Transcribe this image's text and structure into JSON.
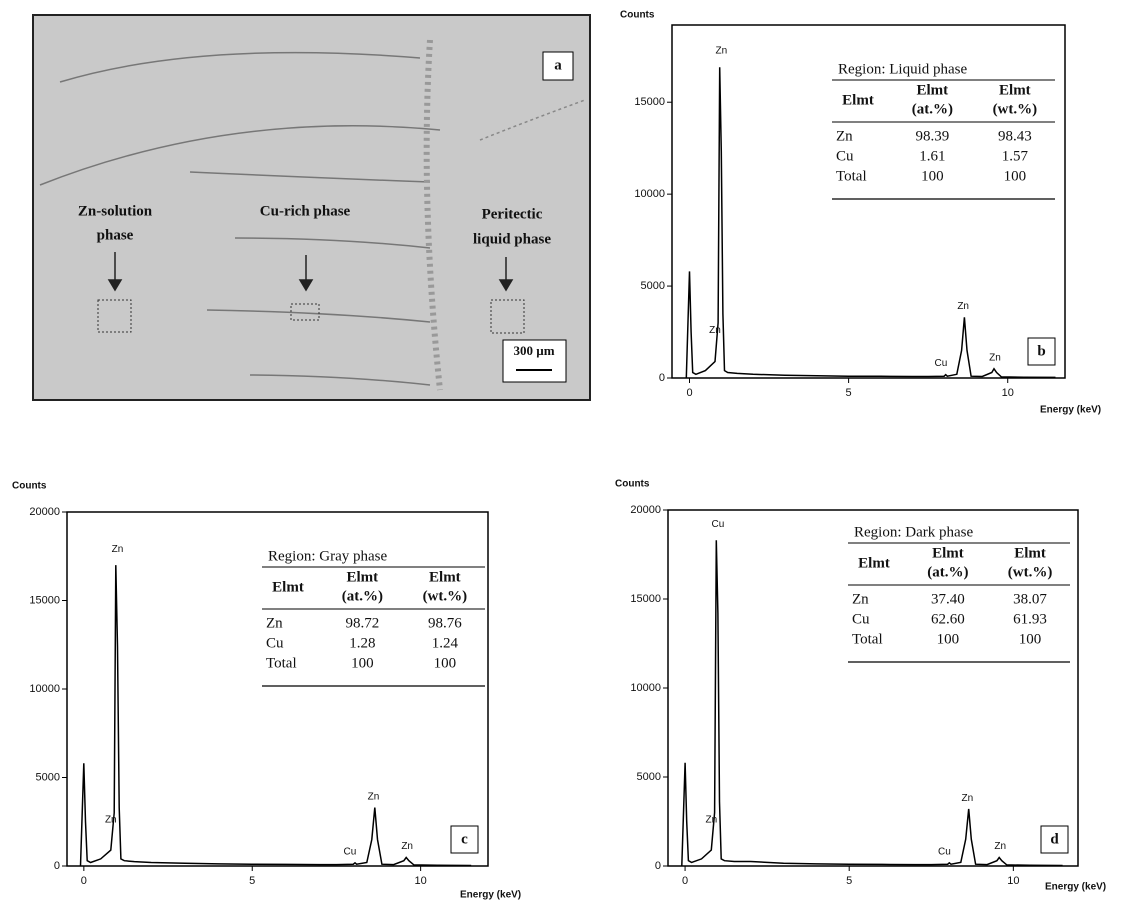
{
  "micrograph": {
    "panel_label": "a",
    "labels": [
      [
        "Zn-solution",
        "phase"
      ],
      [
        "Cu-rich phase"
      ],
      [
        "Peritectic",
        "liquid phase"
      ]
    ],
    "scale_bar": "300 µm"
  },
  "chart_data": [
    {
      "type": "line",
      "panel_label": "b",
      "y_label": "Counts",
      "x_label": "Energy (keV)",
      "color": "#000000",
      "xlim": [
        -0.55,
        11.8
      ],
      "ylim": [
        0,
        19200
      ],
      "xticks": [
        0,
        5,
        10
      ],
      "yticks": [
        0,
        5000,
        10000,
        15000
      ],
      "x": [
        -0.1,
        0,
        0.05,
        0.1,
        0.2,
        0.5,
        0.8,
        0.9,
        0.95,
        1.0,
        1.05,
        1.1,
        1.2,
        1.5,
        2,
        3,
        4,
        5,
        6,
        7,
        7.5,
        8.0,
        8.05,
        8.1,
        8.4,
        8.55,
        8.64,
        8.72,
        8.85,
        9.2,
        9.5,
        9.57,
        9.65,
        9.8,
        10.5,
        11.5
      ],
      "values": [
        0,
        5800,
        2500,
        300,
        200,
        400,
        900,
        3000,
        16900,
        12300,
        3500,
        400,
        300,
        250,
        200,
        150,
        120,
        100,
        90,
        80,
        80,
        100,
        180,
        100,
        200,
        1500,
        3300,
        1500,
        100,
        80,
        300,
        500,
        300,
        60,
        40,
        30
      ],
      "peak_labels": [
        {
          "label": "Zn",
          "x": 1.0,
          "y": 17800
        },
        {
          "label": "Zn",
          "x": 0.8,
          "y": 2600
        },
        {
          "label": "Cu",
          "x": 7.9,
          "y": 800
        },
        {
          "label": "Zn",
          "x": 8.6,
          "y": 3900
        },
        {
          "label": "Zn",
          "x": 9.6,
          "y": 1100
        }
      ],
      "table": {
        "title": "Region: Liquid phase",
        "header": [
          [
            "Elmt"
          ],
          [
            "Elmt",
            "(at.%)"
          ],
          [
            "Elmt",
            "(wt.%)"
          ]
        ],
        "rows": [
          [
            "Zn",
            "98.39",
            "98.43"
          ],
          [
            "Cu",
            "1.61",
            "1.57"
          ],
          [
            "Total",
            "100",
            "100"
          ]
        ]
      }
    },
    {
      "type": "line",
      "panel_label": "c",
      "y_label": "Counts",
      "x_label": "Energy (keV)",
      "color": "#000000",
      "xlim": [
        -0.5,
        12
      ],
      "ylim": [
        0,
        20000
      ],
      "xticks": [
        0,
        5,
        10
      ],
      "yticks": [
        0,
        5000,
        10000,
        15000,
        20000
      ],
      "x": [
        -0.1,
        0,
        0.05,
        0.1,
        0.2,
        0.5,
        0.8,
        0.9,
        0.95,
        1.0,
        1.05,
        1.1,
        1.2,
        1.5,
        2,
        3,
        4,
        5,
        6,
        7,
        7.5,
        8.0,
        8.05,
        8.1,
        8.4,
        8.55,
        8.64,
        8.72,
        8.85,
        9.2,
        9.5,
        9.57,
        9.65,
        9.8,
        10.5,
        11.5
      ],
      "values": [
        0,
        5800,
        2500,
        300,
        200,
        400,
        900,
        3000,
        17000,
        12400,
        3300,
        400,
        300,
        250,
        200,
        150,
        120,
        100,
        90,
        80,
        80,
        100,
        180,
        100,
        200,
        1500,
        3300,
        1500,
        100,
        80,
        300,
        480,
        300,
        60,
        40,
        30
      ],
      "peak_labels": [
        {
          "label": "Zn",
          "x": 1.0,
          "y": 17900
        },
        {
          "label": "Zn",
          "x": 0.8,
          "y": 2600
        },
        {
          "label": "Cu",
          "x": 7.9,
          "y": 800
        },
        {
          "label": "Zn",
          "x": 8.6,
          "y": 3900
        },
        {
          "label": "Zn",
          "x": 9.6,
          "y": 1100
        }
      ],
      "table": {
        "title": "Region: Gray phase",
        "header": [
          [
            "Elmt"
          ],
          [
            "Elmt",
            "(at.%)"
          ],
          [
            "Elmt",
            "(wt.%)"
          ]
        ],
        "rows": [
          [
            "Zn",
            "98.72",
            "98.76"
          ],
          [
            "Cu",
            "1.28",
            "1.24"
          ],
          [
            "Total",
            "100",
            "100"
          ]
        ]
      }
    },
    {
      "type": "line",
      "panel_label": "d",
      "y_label": "Counts",
      "x_label": "Energy (keV)",
      "color": "#000000",
      "xlim": [
        -0.52,
        11.97
      ],
      "ylim": [
        0,
        20000
      ],
      "xticks": [
        0,
        5,
        10
      ],
      "yticks": [
        0,
        5000,
        10000,
        15000,
        20000
      ],
      "x": [
        -0.1,
        0,
        0.05,
        0.1,
        0.2,
        0.5,
        0.8,
        0.9,
        0.95,
        1.0,
        1.05,
        1.1,
        1.2,
        1.5,
        2,
        3,
        4,
        5,
        6,
        7,
        7.5,
        8.0,
        8.05,
        8.1,
        8.4,
        8.55,
        8.64,
        8.72,
        8.85,
        9.2,
        9.5,
        9.57,
        9.65,
        9.8,
        10.5,
        11.5
      ],
      "values": [
        0,
        5800,
        2500,
        300,
        200,
        400,
        900,
        3000,
        18300,
        14200,
        3600,
        400,
        300,
        250,
        250,
        150,
        120,
        100,
        90,
        80,
        80,
        100,
        180,
        100,
        200,
        1500,
        3200,
        1500,
        100,
        80,
        300,
        480,
        300,
        60,
        40,
        30
      ],
      "peak_labels": [
        {
          "label": "Cu",
          "x": 1.0,
          "y": 19200
        },
        {
          "label": "Zn",
          "x": 0.8,
          "y": 2600
        },
        {
          "label": "Cu",
          "x": 7.9,
          "y": 800
        },
        {
          "label": "Zn",
          "x": 8.6,
          "y": 3800
        },
        {
          "label": "Zn",
          "x": 9.6,
          "y": 1100
        }
      ],
      "table": {
        "title": "Region: Dark phase",
        "header": [
          [
            "Elmt"
          ],
          [
            "Elmt",
            "(at.%)"
          ],
          [
            "Elmt",
            "(wt.%)"
          ]
        ],
        "rows": [
          [
            "Zn",
            "37.40",
            "38.07"
          ],
          [
            "Cu",
            "62.60",
            "61.93"
          ],
          [
            "Total",
            "100",
            "100"
          ]
        ]
      }
    }
  ]
}
